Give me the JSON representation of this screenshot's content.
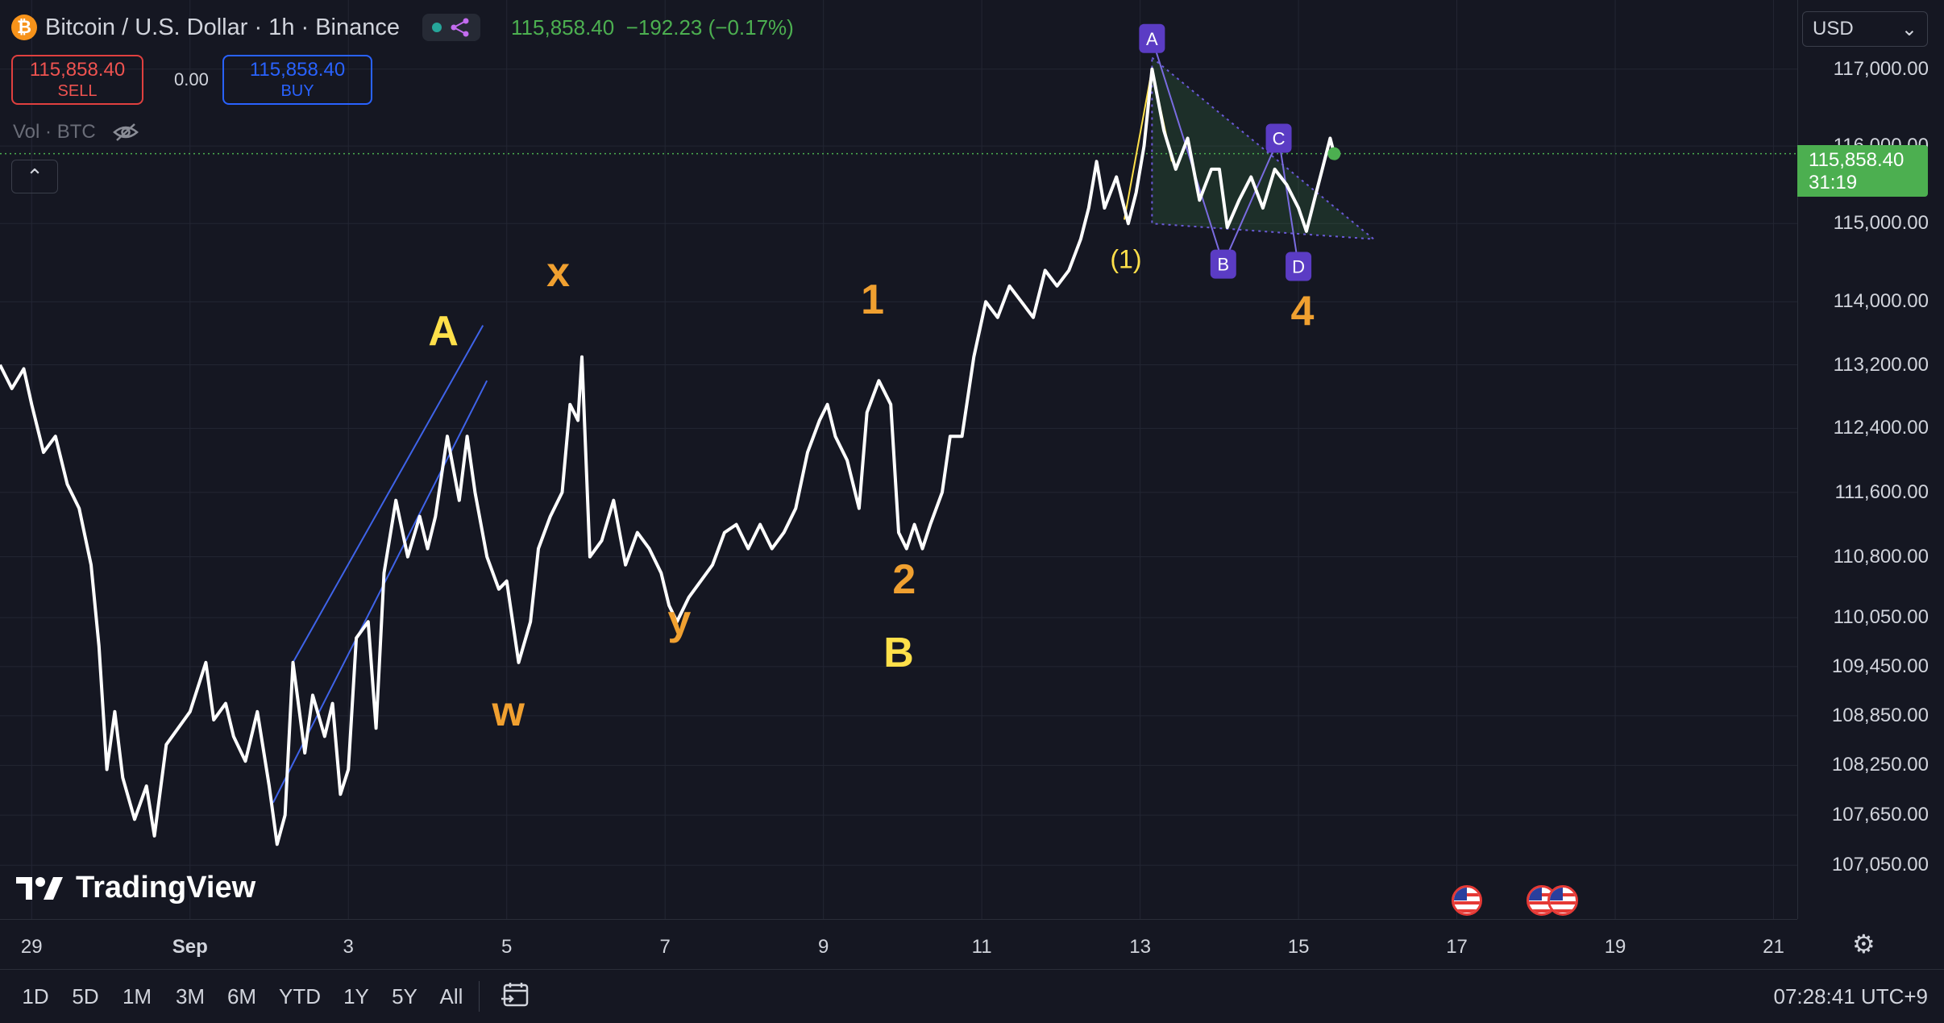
{
  "header": {
    "symbol_title": "Bitcoin / U.S. Dollar · 1h · Binance",
    "icon": "bitcoin-icon",
    "last": "115,858.40",
    "change": "−192.23 (−0.17%)"
  },
  "trade": {
    "sell_price": "115,858.40",
    "sell_label": "SELL",
    "spread": "0.00",
    "buy_price": "115,858.40",
    "buy_label": "BUY"
  },
  "volume": {
    "label": "Vol · BTC"
  },
  "currency": {
    "selected": "USD"
  },
  "last_price": {
    "value": "115,858.40",
    "countdown": "31:19"
  },
  "logo": {
    "text": "TradingView"
  },
  "toolbar": {
    "ranges": [
      "1D",
      "5D",
      "1M",
      "3M",
      "6M",
      "YTD",
      "1Y",
      "5Y",
      "All"
    ],
    "clock": "07:28:41 UTC+9"
  },
  "colors": {
    "background": "#151722",
    "price_line": "#ffffff",
    "up": "#4caf50",
    "down": "#ef5350",
    "accent": "#2962ff",
    "wave_major": "#f0a030",
    "wave_minor": "#ffe04a",
    "pattern": "#5b3cc4"
  },
  "chart_data": {
    "type": "line",
    "title": "Bitcoin / U.S. Dollar · 1h · Binance",
    "xlabel": "",
    "ylabel": "",
    "x_ticks": [
      {
        "v": 29,
        "label": "29"
      },
      {
        "v": 31,
        "label": "Sep"
      },
      {
        "v": 33,
        "label": "3"
      },
      {
        "v": 35,
        "label": "5"
      },
      {
        "v": 37,
        "label": "7"
      },
      {
        "v": 39,
        "label": "9"
      },
      {
        "v": 41,
        "label": "11"
      },
      {
        "v": 43,
        "label": "13"
      },
      {
        "v": 45,
        "label": "15"
      },
      {
        "v": 47,
        "label": "17"
      },
      {
        "v": 49,
        "label": "19"
      },
      {
        "v": 51,
        "label": "21"
      }
    ],
    "xlim": [
      28.6,
      51.3
    ],
    "y_ticks": [
      107050,
      107650,
      108250,
      108850,
      109450,
      110050,
      110800,
      111600,
      112400,
      113200,
      114000,
      115000,
      116000,
      117000
    ],
    "y_tick_labels": [
      "107,050.00",
      "107,650.00",
      "108,250.00",
      "108,850.00",
      "109,450.00",
      "110,050.00",
      "110,800.00",
      "111,600.00",
      "112,400.00",
      "113,200.00",
      "114,000.00",
      "115,000.00",
      "116,000.00",
      "117,000.00"
    ],
    "series": [
      {
        "values": [
          [
            28.6,
            113200
          ],
          [
            28.75,
            112900
          ],
          [
            28.9,
            113150
          ],
          [
            29.0,
            112700
          ],
          [
            29.15,
            112100
          ],
          [
            29.3,
            112300
          ],
          [
            29.45,
            111700
          ],
          [
            29.6,
            111400
          ],
          [
            29.75,
            110700
          ],
          [
            29.85,
            109700
          ],
          [
            29.95,
            108200
          ],
          [
            30.05,
            108900
          ],
          [
            30.15,
            108100
          ],
          [
            30.3,
            107600
          ],
          [
            30.45,
            108000
          ],
          [
            30.55,
            107400
          ],
          [
            30.7,
            108500
          ],
          [
            30.85,
            108700
          ],
          [
            31.0,
            108900
          ],
          [
            31.2,
            109500
          ],
          [
            31.3,
            108800
          ],
          [
            31.45,
            109000
          ],
          [
            31.55,
            108600
          ],
          [
            31.7,
            108300
          ],
          [
            31.85,
            108900
          ],
          [
            32.0,
            108000
          ],
          [
            32.1,
            107300
          ],
          [
            32.2,
            107650
          ],
          [
            32.3,
            109500
          ],
          [
            32.45,
            108400
          ],
          [
            32.55,
            109100
          ],
          [
            32.7,
            108600
          ],
          [
            32.8,
            109000
          ],
          [
            32.9,
            107900
          ],
          [
            33.0,
            108200
          ],
          [
            33.1,
            109800
          ],
          [
            33.25,
            110000
          ],
          [
            33.35,
            108700
          ],
          [
            33.45,
            110600
          ],
          [
            33.6,
            111500
          ],
          [
            33.75,
            110800
          ],
          [
            33.9,
            111300
          ],
          [
            34.0,
            110900
          ],
          [
            34.1,
            111300
          ],
          [
            34.25,
            112300
          ],
          [
            34.4,
            111500
          ],
          [
            34.5,
            112300
          ],
          [
            34.6,
            111600
          ],
          [
            34.75,
            110800
          ],
          [
            34.9,
            110400
          ],
          [
            35.0,
            110500
          ],
          [
            35.15,
            109500
          ],
          [
            35.3,
            110000
          ],
          [
            35.4,
            110900
          ],
          [
            35.55,
            111300
          ],
          [
            35.7,
            111600
          ],
          [
            35.8,
            112700
          ],
          [
            35.9,
            112500
          ],
          [
            35.95,
            113300
          ],
          [
            36.05,
            110800
          ],
          [
            36.2,
            111000
          ],
          [
            36.35,
            111500
          ],
          [
            36.5,
            110700
          ],
          [
            36.65,
            111100
          ],
          [
            36.8,
            110900
          ],
          [
            36.95,
            110600
          ],
          [
            37.05,
            110200
          ],
          [
            37.15,
            110000
          ],
          [
            37.3,
            110300
          ],
          [
            37.45,
            110500
          ],
          [
            37.6,
            110700
          ],
          [
            37.75,
            111100
          ],
          [
            37.9,
            111200
          ],
          [
            38.05,
            110900
          ],
          [
            38.2,
            111200
          ],
          [
            38.35,
            110900
          ],
          [
            38.5,
            111100
          ],
          [
            38.65,
            111400
          ],
          [
            38.8,
            112100
          ],
          [
            38.95,
            112500
          ],
          [
            39.05,
            112700
          ],
          [
            39.15,
            112300
          ],
          [
            39.3,
            112000
          ],
          [
            39.45,
            111400
          ],
          [
            39.55,
            112600
          ],
          [
            39.7,
            113000
          ],
          [
            39.85,
            112700
          ],
          [
            39.95,
            111100
          ],
          [
            40.05,
            110900
          ],
          [
            40.15,
            111200
          ],
          [
            40.25,
            110900
          ],
          [
            40.35,
            111200
          ],
          [
            40.5,
            111600
          ],
          [
            40.6,
            112300
          ],
          [
            40.75,
            112300
          ],
          [
            40.9,
            113300
          ],
          [
            41.05,
            114000
          ],
          [
            41.2,
            113800
          ],
          [
            41.35,
            114200
          ],
          [
            41.5,
            114000
          ],
          [
            41.65,
            113800
          ],
          [
            41.8,
            114400
          ],
          [
            41.95,
            114200
          ],
          [
            42.1,
            114400
          ],
          [
            42.25,
            114800
          ],
          [
            42.35,
            115200
          ],
          [
            42.45,
            115800
          ],
          [
            42.55,
            115200
          ],
          [
            42.7,
            115600
          ],
          [
            42.85,
            115000
          ],
          [
            42.95,
            115400
          ],
          [
            43.05,
            116000
          ],
          [
            43.15,
            117000
          ],
          [
            43.3,
            116200
          ],
          [
            43.45,
            115700
          ],
          [
            43.6,
            116100
          ],
          [
            43.75,
            115300
          ],
          [
            43.9,
            115700
          ],
          [
            44.0,
            115700
          ],
          [
            44.1,
            114950
          ],
          [
            44.25,
            115300
          ],
          [
            44.4,
            115600
          ],
          [
            44.55,
            115200
          ],
          [
            44.7,
            115700
          ],
          [
            44.85,
            115500
          ],
          [
            45.0,
            115200
          ],
          [
            45.1,
            114900
          ],
          [
            45.2,
            115300
          ],
          [
            45.3,
            115700
          ],
          [
            45.4,
            116100
          ],
          [
            45.45,
            115900
          ]
        ]
      }
    ],
    "ylim": [
      106600,
      117800
    ],
    "scale": "log",
    "grid": true,
    "annotations": [
      {
        "text": "A",
        "x": 34.2,
        "y": 113450,
        "color": "#ffe04a"
      },
      {
        "text": "x",
        "x": 35.65,
        "y": 114200,
        "color": "#f0a030"
      },
      {
        "text": "w",
        "x": 35.02,
        "y": 108730,
        "color": "#f0a030"
      },
      {
        "text": "y",
        "x": 37.18,
        "y": 109850,
        "color": "#f0a030"
      },
      {
        "text": "1",
        "x": 39.62,
        "y": 113850,
        "color": "#f0a030"
      },
      {
        "text": "2",
        "x": 40.02,
        "y": 110350,
        "color": "#f0a030"
      },
      {
        "text": "B",
        "x": 39.95,
        "y": 109450,
        "color": "#ffe04a"
      },
      {
        "text": "(1)",
        "x": 42.82,
        "y": 114430,
        "color": "#ffe04a"
      },
      {
        "text": "4",
        "x": 45.05,
        "y": 113700,
        "color": "#f0a030"
      }
    ],
    "pattern_points": [
      {
        "label": "A",
        "x": 43.15,
        "y": 117400
      },
      {
        "label": "B",
        "x": 44.05,
        "y": 114480
      },
      {
        "label": "C",
        "x": 44.75,
        "y": 116100
      },
      {
        "label": "D",
        "x": 45.0,
        "y": 114450
      }
    ]
  }
}
